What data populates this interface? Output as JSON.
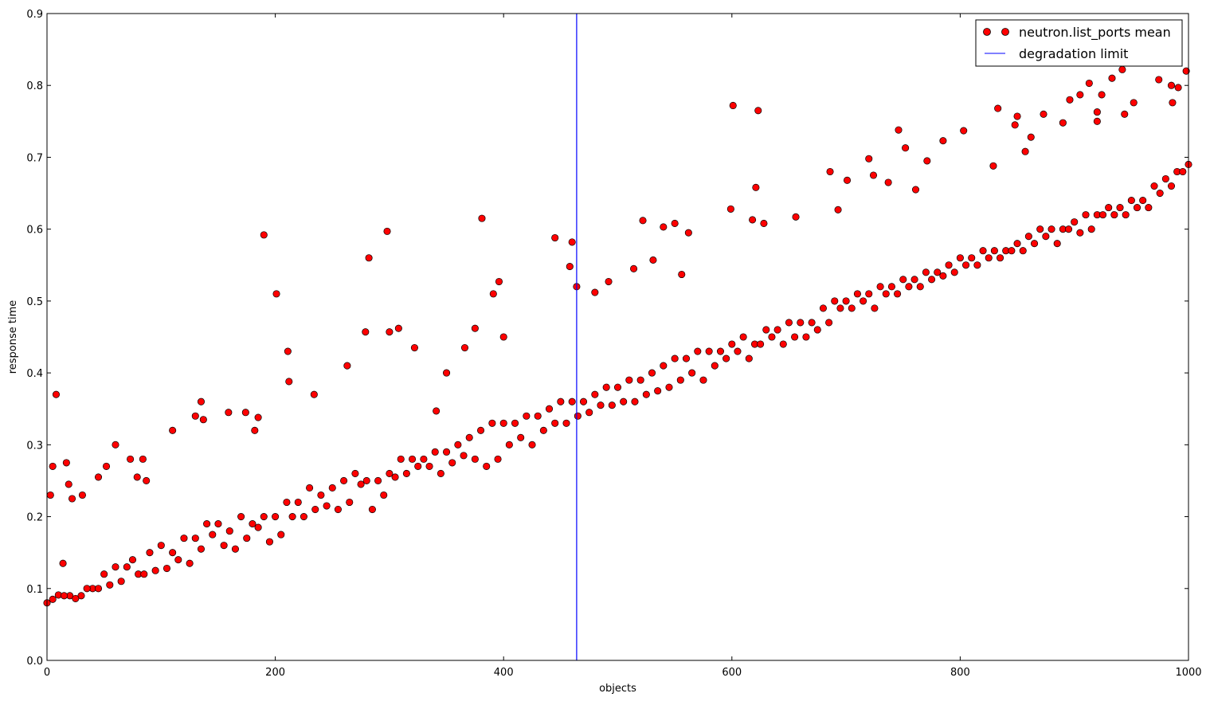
{
  "chart_data": {
    "type": "scatter",
    "title": "",
    "xlabel": "objects",
    "ylabel": "response time",
    "xlim": [
      0,
      1000
    ],
    "ylim": [
      0,
      0.9
    ],
    "xticks": [
      0,
      200,
      400,
      600,
      800,
      1000
    ],
    "xtick_labels": [
      "0",
      "200",
      "400",
      "600",
      "800",
      "1000"
    ],
    "yticks": [
      0.0,
      0.1,
      0.2,
      0.3,
      0.4,
      0.5,
      0.6,
      0.7,
      0.8,
      0.9
    ],
    "ytick_labels": [
      "0.0",
      "0.1",
      "0.2",
      "0.3",
      "0.4",
      "0.5",
      "0.6",
      "0.7",
      "0.8",
      "0.9"
    ],
    "grid": false,
    "legend_placement": "top-right",
    "series": [
      {
        "name": "neutron.list_ports mean",
        "marker": "circle",
        "color": "#ff0000",
        "edge_color": "#000000",
        "points": [
          [
            0,
            0.08
          ],
          [
            10,
            0.091
          ],
          [
            20,
            0.09
          ],
          [
            30,
            0.09
          ],
          [
            40,
            0.1
          ],
          [
            50,
            0.12
          ],
          [
            60,
            0.13
          ],
          [
            70,
            0.13
          ],
          [
            80,
            0.12
          ],
          [
            90,
            0.15
          ],
          [
            100,
            0.16
          ],
          [
            110,
            0.15
          ],
          [
            120,
            0.17
          ],
          [
            130,
            0.17
          ],
          [
            140,
            0.19
          ],
          [
            150,
            0.19
          ],
          [
            160,
            0.18
          ],
          [
            170,
            0.2
          ],
          [
            180,
            0.19
          ],
          [
            190,
            0.2
          ],
          [
            200,
            0.2
          ],
          [
            210,
            0.22
          ],
          [
            220,
            0.22
          ],
          [
            230,
            0.24
          ],
          [
            240,
            0.23
          ],
          [
            250,
            0.24
          ],
          [
            260,
            0.25
          ],
          [
            270,
            0.26
          ],
          [
            280,
            0.25
          ],
          [
            290,
            0.25
          ],
          [
            300,
            0.26
          ],
          [
            310,
            0.28
          ],
          [
            320,
            0.28
          ],
          [
            330,
            0.28
          ],
          [
            340,
            0.29
          ],
          [
            350,
            0.29
          ],
          [
            360,
            0.3
          ],
          [
            370,
            0.31
          ],
          [
            380,
            0.32
          ],
          [
            390,
            0.33
          ],
          [
            400,
            0.33
          ],
          [
            410,
            0.33
          ],
          [
            420,
            0.34
          ],
          [
            430,
            0.34
          ],
          [
            440,
            0.35
          ],
          [
            450,
            0.36
          ],
          [
            460,
            0.36
          ],
          [
            470,
            0.36
          ],
          [
            480,
            0.37
          ],
          [
            490,
            0.38
          ],
          [
            500,
            0.38
          ],
          [
            510,
            0.39
          ],
          [
            520,
            0.39
          ],
          [
            530,
            0.4
          ],
          [
            540,
            0.41
          ],
          [
            550,
            0.42
          ],
          [
            560,
            0.42
          ],
          [
            570,
            0.43
          ],
          [
            580,
            0.43
          ],
          [
            590,
            0.43
          ],
          [
            600,
            0.44
          ],
          [
            610,
            0.45
          ],
          [
            620,
            0.44
          ],
          [
            630,
            0.46
          ],
          [
            640,
            0.46
          ],
          [
            650,
            0.47
          ],
          [
            660,
            0.47
          ],
          [
            670,
            0.47
          ],
          [
            680,
            0.49
          ],
          [
            690,
            0.5
          ],
          [
            700,
            0.5
          ],
          [
            710,
            0.51
          ],
          [
            720,
            0.51
          ],
          [
            730,
            0.52
          ],
          [
            740,
            0.52
          ],
          [
            750,
            0.53
          ],
          [
            760,
            0.53
          ],
          [
            770,
            0.54
          ],
          [
            780,
            0.54
          ],
          [
            790,
            0.55
          ],
          [
            800,
            0.56
          ],
          [
            810,
            0.56
          ],
          [
            820,
            0.57
          ],
          [
            830,
            0.57
          ],
          [
            840,
            0.57
          ],
          [
            850,
            0.58
          ],
          [
            860,
            0.59
          ],
          [
            870,
            0.6
          ],
          [
            880,
            0.6
          ],
          [
            890,
            0.6
          ],
          [
            900,
            0.61
          ],
          [
            910,
            0.62
          ],
          [
            920,
            0.62
          ],
          [
            930,
            0.63
          ],
          [
            940,
            0.63
          ],
          [
            950,
            0.64
          ],
          [
            960,
            0.64
          ],
          [
            970,
            0.66
          ],
          [
            980,
            0.67
          ],
          [
            990,
            0.68
          ],
          [
            1000,
            0.69
          ],
          [
            5,
            0.085
          ],
          [
            15,
            0.09
          ],
          [
            25,
            0.086
          ],
          [
            35,
            0.1
          ],
          [
            45,
            0.1
          ],
          [
            55,
            0.105
          ],
          [
            65,
            0.11
          ],
          [
            75,
            0.14
          ],
          [
            85,
            0.12
          ],
          [
            95,
            0.125
          ],
          [
            105,
            0.128
          ],
          [
            115,
            0.14
          ],
          [
            125,
            0.135
          ],
          [
            135,
            0.155
          ],
          [
            145,
            0.175
          ],
          [
            155,
            0.16
          ],
          [
            165,
            0.155
          ],
          [
            175,
            0.17
          ],
          [
            185,
            0.185
          ],
          [
            195,
            0.165
          ],
          [
            205,
            0.175
          ],
          [
            215,
            0.2
          ],
          [
            225,
            0.2
          ],
          [
            235,
            0.21
          ],
          [
            245,
            0.215
          ],
          [
            255,
            0.21
          ],
          [
            265,
            0.22
          ],
          [
            275,
            0.245
          ],
          [
            285,
            0.21
          ],
          [
            295,
            0.23
          ],
          [
            305,
            0.255
          ],
          [
            315,
            0.26
          ],
          [
            325,
            0.27
          ],
          [
            335,
            0.27
          ],
          [
            345,
            0.26
          ],
          [
            355,
            0.275
          ],
          [
            365,
            0.285
          ],
          [
            375,
            0.28
          ],
          [
            385,
            0.27
          ],
          [
            395,
            0.28
          ],
          [
            405,
            0.3
          ],
          [
            415,
            0.31
          ],
          [
            425,
            0.3
          ],
          [
            435,
            0.32
          ],
          [
            445,
            0.33
          ],
          [
            455,
            0.33
          ],
          [
            465,
            0.34
          ],
          [
            475,
            0.345
          ],
          [
            485,
            0.355
          ],
          [
            495,
            0.355
          ],
          [
            505,
            0.36
          ],
          [
            515,
            0.36
          ],
          [
            525,
            0.37
          ],
          [
            535,
            0.375
          ],
          [
            545,
            0.38
          ],
          [
            555,
            0.39
          ],
          [
            565,
            0.4
          ],
          [
            575,
            0.39
          ],
          [
            585,
            0.41
          ],
          [
            595,
            0.42
          ],
          [
            605,
            0.43
          ],
          [
            615,
            0.42
          ],
          [
            625,
            0.44
          ],
          [
            635,
            0.45
          ],
          [
            645,
            0.44
          ],
          [
            655,
            0.45
          ],
          [
            665,
            0.45
          ],
          [
            675,
            0.46
          ],
          [
            685,
            0.47
          ],
          [
            695,
            0.49
          ],
          [
            705,
            0.49
          ],
          [
            715,
            0.5
          ],
          [
            725,
            0.49
          ],
          [
            735,
            0.51
          ],
          [
            745,
            0.51
          ],
          [
            755,
            0.52
          ],
          [
            765,
            0.52
          ],
          [
            775,
            0.53
          ],
          [
            785,
            0.535
          ],
          [
            795,
            0.54
          ],
          [
            805,
            0.55
          ],
          [
            815,
            0.55
          ],
          [
            825,
            0.56
          ],
          [
            835,
            0.56
          ],
          [
            845,
            0.57
          ],
          [
            855,
            0.57
          ],
          [
            865,
            0.58
          ],
          [
            875,
            0.59
          ],
          [
            885,
            0.58
          ],
          [
            895,
            0.6
          ],
          [
            905,
            0.595
          ],
          [
            915,
            0.6
          ],
          [
            925,
            0.62
          ],
          [
            935,
            0.62
          ],
          [
            945,
            0.62
          ],
          [
            955,
            0.63
          ],
          [
            965,
            0.63
          ],
          [
            975,
            0.65
          ],
          [
            985,
            0.66
          ],
          [
            995,
            0.68
          ],
          [
            3,
            0.23
          ],
          [
            5,
            0.27
          ],
          [
            8,
            0.37
          ],
          [
            14,
            0.135
          ],
          [
            17,
            0.275
          ],
          [
            19,
            0.245
          ],
          [
            22,
            0.225
          ],
          [
            31,
            0.23
          ],
          [
            45,
            0.255
          ],
          [
            52,
            0.27
          ],
          [
            60,
            0.3
          ],
          [
            73,
            0.28
          ],
          [
            79,
            0.255
          ],
          [
            84,
            0.28
          ],
          [
            87,
            0.25
          ],
          [
            110,
            0.32
          ],
          [
            130,
            0.34
          ],
          [
            135,
            0.36
          ],
          [
            137,
            0.335
          ],
          [
            159,
            0.345
          ],
          [
            174,
            0.345
          ],
          [
            182,
            0.32
          ],
          [
            185,
            0.338
          ],
          [
            190,
            0.592
          ],
          [
            201,
            0.51
          ],
          [
            211,
            0.43
          ],
          [
            212,
            0.388
          ],
          [
            234,
            0.37
          ],
          [
            263,
            0.41
          ],
          [
            279,
            0.457
          ],
          [
            282,
            0.56
          ],
          [
            298,
            0.597
          ],
          [
            300,
            0.457
          ],
          [
            308,
            0.462
          ],
          [
            322,
            0.435
          ],
          [
            341,
            0.347
          ],
          [
            350,
            0.4
          ],
          [
            366,
            0.435
          ],
          [
            375,
            0.462
          ],
          [
            381,
            0.615
          ],
          [
            391,
            0.51
          ],
          [
            396,
            0.527
          ],
          [
            400,
            0.45
          ],
          [
            445,
            0.588
          ],
          [
            458,
            0.548
          ],
          [
            460,
            0.582
          ],
          [
            464,
            0.52
          ],
          [
            480,
            0.512
          ],
          [
            492,
            0.527
          ],
          [
            514,
            0.545
          ],
          [
            522,
            0.612
          ],
          [
            531,
            0.557
          ],
          [
            540,
            0.603
          ],
          [
            550,
            0.608
          ],
          [
            556,
            0.537
          ],
          [
            562,
            0.595
          ],
          [
            601,
            0.772
          ],
          [
            599,
            0.628
          ],
          [
            621,
            0.658
          ],
          [
            623,
            0.765
          ],
          [
            628,
            0.608
          ],
          [
            618,
            0.613
          ],
          [
            656,
            0.617
          ],
          [
            686,
            0.68
          ],
          [
            693,
            0.627
          ],
          [
            701,
            0.668
          ],
          [
            720,
            0.698
          ],
          [
            724,
            0.675
          ],
          [
            737,
            0.665
          ],
          [
            746,
            0.738
          ],
          [
            752,
            0.713
          ],
          [
            761,
            0.655
          ],
          [
            771,
            0.695
          ],
          [
            785,
            0.723
          ],
          [
            803,
            0.737
          ],
          [
            829,
            0.688
          ],
          [
            833,
            0.768
          ],
          [
            848,
            0.745
          ],
          [
            850,
            0.757
          ],
          [
            857,
            0.708
          ],
          [
            862,
            0.728
          ],
          [
            873,
            0.76
          ],
          [
            890,
            0.748
          ],
          [
            896,
            0.78
          ],
          [
            905,
            0.787
          ],
          [
            913,
            0.803
          ],
          [
            920,
            0.75
          ],
          [
            920,
            0.763
          ],
          [
            924,
            0.787
          ],
          [
            933,
            0.81
          ],
          [
            942,
            0.822
          ],
          [
            944,
            0.76
          ],
          [
            952,
            0.776
          ],
          [
            974,
            0.808
          ],
          [
            985,
            0.8
          ],
          [
            986,
            0.776
          ],
          [
            991,
            0.797
          ],
          [
            998,
            0.82
          ]
        ]
      }
    ],
    "vertical_lines": [
      {
        "name": "degradation limit",
        "x": 464,
        "color": "#0000ff"
      }
    ],
    "legend": {
      "entries": [
        "neutron.list_ports mean",
        "degradation limit"
      ]
    }
  }
}
